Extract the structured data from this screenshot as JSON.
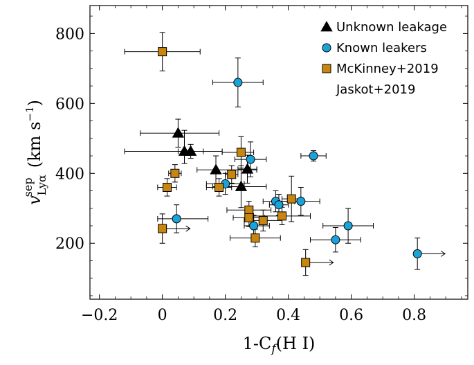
{
  "chart_data": {
    "type": "scatter",
    "xlabel": "1-C",
    "xlabel_sub": "f",
    "xlabel_suffix": "(H I)",
    "ylabel": "v",
    "ylabel_sup": "sep",
    "ylabel_sub": "Lyα",
    "ylabel_units": "(km s",
    "ylabel_units_exp": "−1",
    "ylabel_units_close": ")",
    "xlim": [
      -0.23,
      0.97
    ],
    "ylim": [
      40,
      880
    ],
    "x_ticks": [
      -0.2,
      0,
      0.2,
      0.4,
      0.6,
      0.8
    ],
    "x_tick_labels": [
      "−0.2",
      "0",
      "0.2",
      "0.4",
      "0.6",
      "0.8"
    ],
    "y_ticks": [
      200,
      400,
      600,
      800
    ],
    "y_tick_labels": [
      "200",
      "400",
      "600",
      "800"
    ],
    "grid": false,
    "legend_position": "top-right",
    "colors": {
      "unknown": "#000000",
      "known": "#1aa3d9",
      "mckinney": "#c8860f",
      "errorbar": "#000000"
    },
    "series": [
      {
        "name": "Unknown leakage",
        "marker": "triangle",
        "points": [
          {
            "x": 0.05,
            "y": 515,
            "xerr": [
              0.12,
              0.13
            ],
            "yerr": [
              40,
              40
            ]
          },
          {
            "x": 0.07,
            "y": 463,
            "xerr": [
              0.19,
              0.12
            ],
            "yerr": [
              35,
              60
            ]
          },
          {
            "x": 0.09,
            "y": 463,
            "xerr": [
              0.04,
              0.04
            ],
            "yerr": [
              20,
              20
            ]
          },
          {
            "x": 0.17,
            "y": 410,
            "xerr": [
              0.06,
              0.13
            ],
            "yerr": [
              50,
              40
            ]
          },
          {
            "x": 0.25,
            "y": 362,
            "xerr": [
              0.09,
              0.08
            ],
            "yerr": [
              60,
              60
            ]
          },
          {
            "x": 0.27,
            "y": 412,
            "xerr": [
              0.03,
              0.03
            ],
            "yerr": [
              40,
              40
            ]
          }
        ]
      },
      {
        "name": "Known leakers",
        "marker": "circle",
        "points": [
          {
            "x": 0.24,
            "y": 660,
            "xerr": [
              0.08,
              0.08
            ],
            "yerr": [
              70,
              70
            ]
          },
          {
            "x": 0.48,
            "y": 450,
            "xerr": [
              0.04,
              0.04
            ],
            "yerr": [
              15,
              15
            ]
          },
          {
            "x": 0.28,
            "y": 440,
            "xerr": [
              0.05,
              0.05
            ],
            "yerr": [
              50,
              50
            ]
          },
          {
            "x": 0.2,
            "y": 370,
            "xerr": [
              0.06,
              0.06
            ],
            "yerr": [
              30,
              30
            ]
          },
          {
            "x": 0.045,
            "y": 270,
            "xerr": [
              0.06,
              0.1
            ],
            "yerr": [
              40,
              40
            ]
          },
          {
            "x": 0.29,
            "y": 250,
            "xerr": [
              0.03,
              0.05
            ],
            "yerr": [
              30,
              30
            ]
          },
          {
            "x": 0.36,
            "y": 320,
            "xerr": [
              0.04,
              0.06
            ],
            "yerr": [
              30,
              30
            ]
          },
          {
            "x": 0.37,
            "y": 310,
            "xerr": [
              0.03,
              0.03
            ],
            "yerr": [
              30,
              30
            ]
          },
          {
            "x": 0.44,
            "y": 320,
            "xerr": [
              0.07,
              0.06
            ],
            "yerr": [
              40,
              40
            ]
          },
          {
            "x": 0.55,
            "y": 210,
            "xerr": [
              0.08,
              0.08
            ],
            "yerr": [
              35,
              35
            ]
          },
          {
            "x": 0.59,
            "y": 250,
            "xerr": [
              0.08,
              0.08
            ],
            "yerr": [
              50,
              50
            ]
          },
          {
            "x": 0.81,
            "y": 170,
            "xerr": [
              0,
              0
            ],
            "yerr": [
              45,
              45
            ],
            "lower_limit": true
          }
        ]
      },
      {
        "name": "McKinney+2019 Jaskot+2019",
        "marker": "square",
        "points": [
          {
            "x": 0.0,
            "y": 748,
            "xerr": [
              0.12,
              0.12
            ],
            "yerr": [
              55,
              55
            ]
          },
          {
            "x": 0.25,
            "y": 460,
            "xerr": [
              0.06,
              0.04
            ],
            "yerr": [
              45,
              45
            ]
          },
          {
            "x": 0.04,
            "y": 400,
            "xerr": [
              0.02,
              0.02
            ],
            "yerr": [
              25,
              25
            ]
          },
          {
            "x": 0.22,
            "y": 397,
            "xerr": [
              0.02,
              0.02
            ],
            "yerr": [
              25,
              25
            ]
          },
          {
            "x": 0.015,
            "y": 360,
            "xerr": [
              0.03,
              0.03
            ],
            "yerr": [
              25,
              25
            ]
          },
          {
            "x": 0.18,
            "y": 360,
            "xerr": [
              0.04,
              0.04
            ],
            "yerr": [
              25,
              25
            ]
          },
          {
            "x": 0.275,
            "y": 295,
            "xerr": [
              0.07,
              0.07
            ],
            "yerr": [
              25,
              25
            ]
          },
          {
            "x": 0.275,
            "y": 273,
            "xerr": [
              0.05,
              0.05
            ],
            "yerr": [
              25,
              25
            ]
          },
          {
            "x": 0.32,
            "y": 265,
            "xerr": [
              0.06,
              0.06
            ],
            "yerr": [
              30,
              30
            ]
          },
          {
            "x": 0.38,
            "y": 278,
            "xerr": [
              0.09,
              0.09
            ],
            "yerr": [
              25,
              25
            ]
          },
          {
            "x": 0.41,
            "y": 327,
            "xerr": [
              0.03,
              0.03
            ],
            "yerr": [
              65,
              65
            ]
          },
          {
            "x": 0.295,
            "y": 215,
            "xerr": [
              0.08,
              0.08
            ],
            "yerr": [
              25,
              25
            ]
          },
          {
            "x": 0.0,
            "y": 242,
            "xerr": [
              0,
              0
            ],
            "yerr": [
              42,
              42
            ],
            "lower_limit": true
          },
          {
            "x": 0.455,
            "y": 145,
            "xerr": [
              0,
              0
            ],
            "yerr": [
              37,
              37
            ],
            "lower_limit": true
          }
        ]
      }
    ],
    "legend": [
      {
        "label": "Unknown leakage",
        "marker": "triangle"
      },
      {
        "label": "Known leakers",
        "marker": "circle"
      },
      {
        "label": "McKinney+2019",
        "marker": "square"
      },
      {
        "label": "Jaskot+2019",
        "marker": "none"
      }
    ]
  }
}
